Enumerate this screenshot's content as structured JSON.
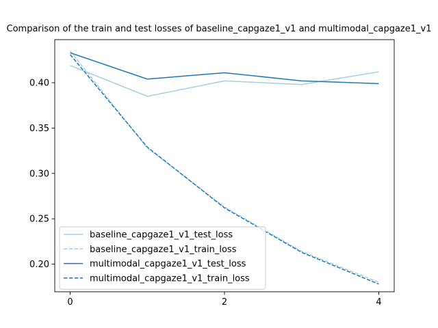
{
  "chart_data": {
    "type": "line",
    "title": "Comparison of the train and test losses of baseline_capgaze1_v1 and multimodal_capgaze1_v1",
    "xlabel": "",
    "ylabel": "",
    "x": [
      0,
      1,
      2,
      3,
      4
    ],
    "xlim": [
      -0.2,
      4.2
    ],
    "ylim": [
      0.1695,
      0.4475
    ],
    "xticks": [
      0,
      2,
      4
    ],
    "yticks": [
      0.2,
      0.25,
      0.3,
      0.35,
      0.4
    ],
    "xtick_labels": [
      "0",
      "2",
      "4"
    ],
    "ytick_labels": [
      "0.20",
      "0.25",
      "0.30",
      "0.35",
      "0.40"
    ],
    "grid": false,
    "legend_position": "lower-left",
    "series": [
      {
        "name": "baseline_capgaze1_v1_test_loss",
        "values": [
          0.419,
          0.385,
          0.402,
          0.398,
          0.412
        ],
        "color": "#a6cee3",
        "style": "solid"
      },
      {
        "name": "baseline_capgaze1_v1_train_loss",
        "values": [
          0.435,
          0.328,
          0.263,
          0.214,
          0.18
        ],
        "color": "#a6cee3",
        "style": "dashed"
      },
      {
        "name": "multimodal_capgaze1_v1_test_loss",
        "values": [
          0.433,
          0.404,
          0.411,
          0.402,
          0.399
        ],
        "color": "#1f78b4",
        "style": "solid"
      },
      {
        "name": "multimodal_capgaze1_v1_train_loss",
        "values": [
          0.431,
          0.329,
          0.262,
          0.213,
          0.178
        ],
        "color": "#1f78b4",
        "style": "dashed"
      }
    ]
  }
}
